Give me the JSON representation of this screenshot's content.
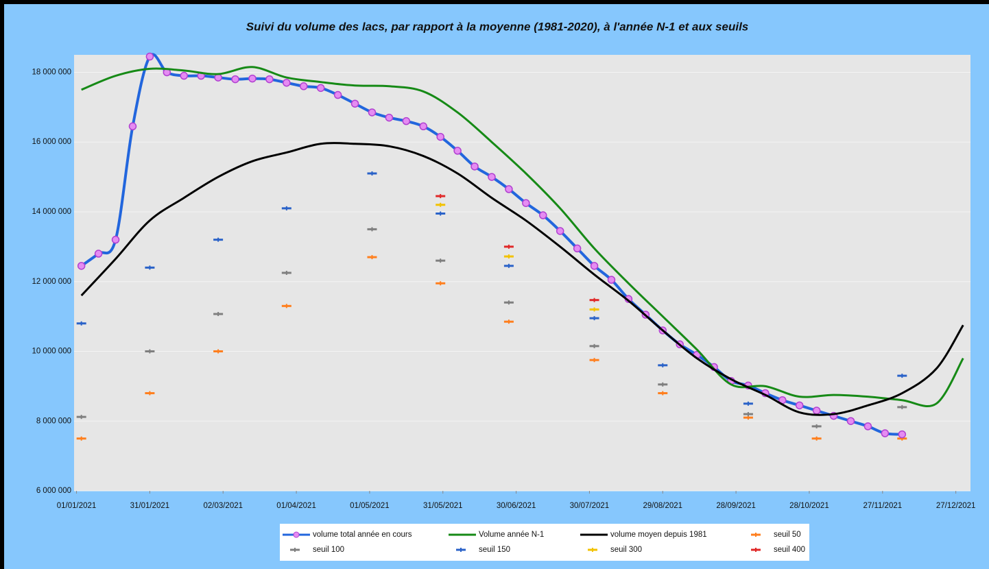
{
  "chart_data": {
    "type": "line",
    "title": "Suivi du volume des lacs, par rapport à la moyenne (1981-2020), à l'année N-1 et aux seuils",
    "xlim": [
      "2020-12-31",
      "2022-01-02"
    ],
    "xticks": [
      {
        "value": "2021-01-01",
        "label": "01/01/2021"
      },
      {
        "value": "2021-01-31",
        "label": "31/01/2021"
      },
      {
        "value": "2021-03-02",
        "label": "02/03/2021"
      },
      {
        "value": "2021-04-01",
        "label": "01/04/2021"
      },
      {
        "value": "2021-05-01",
        "label": "01/05/2021"
      },
      {
        "value": "2021-05-31",
        "label": "31/05/2021"
      },
      {
        "value": "2021-06-30",
        "label": "30/06/2021"
      },
      {
        "value": "2021-07-30",
        "label": "30/07/2021"
      },
      {
        "value": "2021-08-29",
        "label": "29/08/2021"
      },
      {
        "value": "2021-09-28",
        "label": "28/09/2021"
      },
      {
        "value": "2021-10-28",
        "label": "28/10/2021"
      },
      {
        "value": "2021-11-27",
        "label": "27/11/2021"
      },
      {
        "value": "2021-12-27",
        "label": "27/12/2021"
      }
    ],
    "ylim": [
      6000000,
      18500000
    ],
    "yticks": [
      {
        "value": 6000000,
        "label": "6 000 000"
      },
      {
        "value": 8000000,
        "label": "8 000 000"
      },
      {
        "value": 10000000,
        "label": "10 000 000"
      },
      {
        "value": 12000000,
        "label": "12 000 000"
      },
      {
        "value": 14000000,
        "label": "14 000 000"
      },
      {
        "value": 16000000,
        "label": "16 000 000"
      },
      {
        "value": 18000000,
        "label": "18 000 000"
      }
    ],
    "grid": true,
    "legend": "bottom",
    "series": [
      {
        "name": "volume total année en cours",
        "color": "#2266dd",
        "kind": "line",
        "markers": true,
        "x": [
          "2021-01-03",
          "2021-01-10",
          "2021-01-17",
          "2021-01-24",
          "2021-01-31",
          "2021-02-07",
          "2021-02-14",
          "2021-02-21",
          "2021-02-28",
          "2021-03-07",
          "2021-03-14",
          "2021-03-21",
          "2021-03-28",
          "2021-04-04",
          "2021-04-11",
          "2021-04-18",
          "2021-04-25",
          "2021-05-02",
          "2021-05-09",
          "2021-05-16",
          "2021-05-23",
          "2021-05-30",
          "2021-06-06",
          "2021-06-13",
          "2021-06-20",
          "2021-06-27",
          "2021-07-04",
          "2021-07-11",
          "2021-07-18",
          "2021-07-25",
          "2021-08-01",
          "2021-08-08",
          "2021-08-15",
          "2021-08-22",
          "2021-08-29",
          "2021-09-05",
          "2021-09-12",
          "2021-09-19",
          "2021-09-26",
          "2021-10-03",
          "2021-10-10",
          "2021-10-17",
          "2021-10-24",
          "2021-10-31",
          "2021-11-07",
          "2021-11-14",
          "2021-11-21",
          "2021-11-28",
          "2021-12-05"
        ],
        "values": [
          12450000,
          12800000,
          13200000,
          16450000,
          18450000,
          18000000,
          17900000,
          17900000,
          17850000,
          17800000,
          17820000,
          17800000,
          17700000,
          17600000,
          17550000,
          17350000,
          17100000,
          16850000,
          16700000,
          16600000,
          16450000,
          16150000,
          15750000,
          15300000,
          15000000,
          14650000,
          14250000,
          13900000,
          13450000,
          12950000,
          12450000,
          12050000,
          11500000,
          11050000,
          10600000,
          10200000,
          9900000,
          9550000,
          9150000,
          9020000,
          8800000,
          8600000,
          8450000,
          8300000,
          8150000,
          8000000,
          7850000,
          7650000,
          7620000
        ]
      },
      {
        "name": "Volume année N-1",
        "color": "#168a16",
        "kind": "line",
        "markers": false,
        "x": [
          "2021-01-03",
          "2021-01-17",
          "2021-01-31",
          "2021-02-14",
          "2021-02-28",
          "2021-03-14",
          "2021-03-28",
          "2021-04-11",
          "2021-04-25",
          "2021-05-09",
          "2021-05-23",
          "2021-06-06",
          "2021-06-20",
          "2021-07-04",
          "2021-07-18",
          "2021-08-01",
          "2021-08-15",
          "2021-08-29",
          "2021-09-12",
          "2021-09-26",
          "2021-10-10",
          "2021-10-24",
          "2021-11-07",
          "2021-11-21",
          "2021-12-05",
          "2021-12-19",
          "2021-12-30"
        ],
        "values": [
          17500000,
          17900000,
          18100000,
          18050000,
          17950000,
          18150000,
          17850000,
          17720000,
          17620000,
          17600000,
          17450000,
          16850000,
          16000000,
          15100000,
          14100000,
          12950000,
          11950000,
          11000000,
          10050000,
          9050000,
          9000000,
          8700000,
          8750000,
          8700000,
          8600000,
          8500000,
          9800000
        ]
      },
      {
        "name": "volume moyen depuis 1981",
        "color": "#000000",
        "kind": "line",
        "markers": false,
        "x": [
          "2021-01-03",
          "2021-01-17",
          "2021-01-31",
          "2021-02-14",
          "2021-02-28",
          "2021-03-14",
          "2021-03-28",
          "2021-04-11",
          "2021-04-25",
          "2021-05-09",
          "2021-05-23",
          "2021-06-06",
          "2021-06-20",
          "2021-07-04",
          "2021-07-18",
          "2021-08-01",
          "2021-08-15",
          "2021-08-29",
          "2021-09-12",
          "2021-09-26",
          "2021-10-10",
          "2021-10-24",
          "2021-11-07",
          "2021-11-21",
          "2021-12-05",
          "2021-12-19",
          "2021-12-30"
        ],
        "values": [
          11600000,
          12650000,
          13750000,
          14400000,
          15000000,
          15450000,
          15700000,
          15950000,
          15950000,
          15880000,
          15600000,
          15100000,
          14400000,
          13750000,
          13000000,
          12200000,
          11450000,
          10600000,
          9800000,
          9200000,
          8750000,
          8250000,
          8200000,
          8450000,
          8800000,
          9500000,
          10750000
        ]
      },
      {
        "name": "seuil 50",
        "color": "#ff7f1e",
        "kind": "scatter",
        "x": [
          "2021-01-03",
          "2021-01-31",
          "2021-02-28",
          "2021-03-28",
          "2021-05-02",
          "2021-05-30",
          "2021-06-27",
          "2021-08-01",
          "2021-08-29",
          "2021-10-03",
          "2021-10-31",
          "2021-12-05"
        ],
        "values": [
          7500000,
          8800000,
          10000000,
          11300000,
          12700000,
          11950000,
          10850000,
          9750000,
          8800000,
          8100000,
          7500000,
          7500000
        ]
      },
      {
        "name": "seuil 100",
        "color": "#7f7f7f",
        "kind": "scatter",
        "x": [
          "2021-01-03",
          "2021-01-31",
          "2021-02-28",
          "2021-03-28",
          "2021-05-02",
          "2021-05-30",
          "2021-06-27",
          "2021-08-01",
          "2021-08-29",
          "2021-10-03",
          "2021-10-31",
          "2021-12-05"
        ],
        "values": [
          8120000,
          10000000,
          11070000,
          12250000,
          13500000,
          12600000,
          11400000,
          10150000,
          9050000,
          8200000,
          7850000,
          8400000
        ]
      },
      {
        "name": "seuil 150",
        "color": "#2a62c8",
        "kind": "scatter",
        "x": [
          "2021-01-03",
          "2021-01-31",
          "2021-02-28",
          "2021-03-28",
          "2021-05-02",
          "2021-05-30",
          "2021-06-27",
          "2021-08-01",
          "2021-08-29",
          "2021-10-03",
          "2021-12-05"
        ],
        "values": [
          10800000,
          12400000,
          13200000,
          14100000,
          15100000,
          13950000,
          12450000,
          10950000,
          9600000,
          8500000,
          9300000
        ]
      },
      {
        "name": "seuil 300",
        "color": "#f2c200",
        "kind": "scatter",
        "x": [
          "2021-05-30",
          "2021-06-27",
          "2021-08-01"
        ],
        "values": [
          14200000,
          12720000,
          11200000
        ]
      },
      {
        "name": "seuil 400",
        "color": "#e02828",
        "kind": "scatter",
        "x": [
          "2021-05-30",
          "2021-06-27",
          "2021-08-01"
        ],
        "values": [
          14450000,
          13000000,
          11470000
        ]
      }
    ]
  }
}
